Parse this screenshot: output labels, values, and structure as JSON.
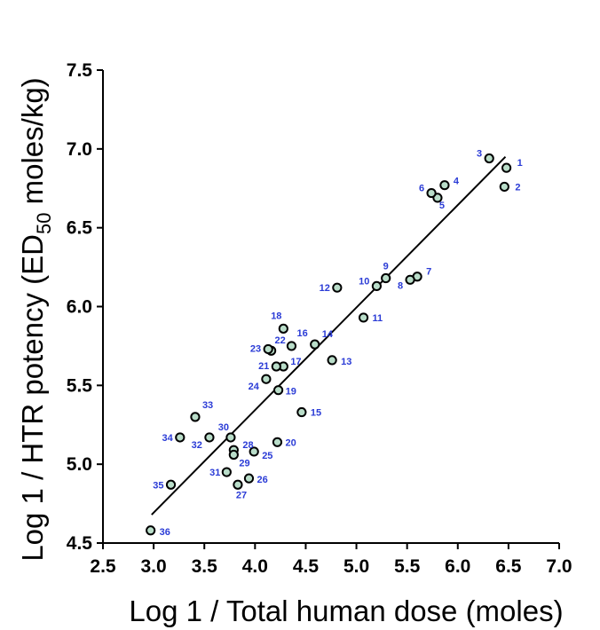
{
  "chart_data": {
    "type": "scatter",
    "xlabel": "Log  1 / Total human dose (moles)",
    "ylabel_prefix": "Log  1 / HTR potency (ED",
    "ylabel_sub": "50",
    "ylabel_suffix": " moles/kg)",
    "xlim": [
      2.5,
      7.0
    ],
    "ylim": [
      4.5,
      7.5
    ],
    "x_ticks": [
      "2.5",
      "3.0",
      "3.5",
      "4.0",
      "4.5",
      "5.0",
      "5.5",
      "6.0",
      "6.5",
      "7.0"
    ],
    "y_ticks": [
      "4.5",
      "5.0",
      "5.5",
      "6.0",
      "6.5",
      "7.0",
      "7.5"
    ],
    "grid": false,
    "point_color": "#b9ddc9",
    "label_color": "#2a3bd6",
    "fit_line": {
      "x": [
        2.98,
        6.47
      ],
      "y": [
        4.68,
        6.95
      ]
    },
    "points": [
      {
        "id": "1",
        "x": 6.48,
        "y": 6.88
      },
      {
        "id": "2",
        "x": 6.46,
        "y": 6.76
      },
      {
        "id": "3",
        "x": 6.31,
        "y": 6.94
      },
      {
        "id": "4",
        "x": 5.87,
        "y": 6.77
      },
      {
        "id": "5",
        "x": 5.8,
        "y": 6.69
      },
      {
        "id": "6",
        "x": 5.74,
        "y": 6.72
      },
      {
        "id": "7",
        "x": 5.6,
        "y": 6.19
      },
      {
        "id": "8",
        "x": 5.53,
        "y": 6.17
      },
      {
        "id": "9",
        "x": 5.29,
        "y": 6.18
      },
      {
        "id": "10",
        "x": 5.2,
        "y": 6.13
      },
      {
        "id": "11",
        "x": 5.07,
        "y": 5.93
      },
      {
        "id": "12",
        "x": 4.81,
        "y": 6.12
      },
      {
        "id": "13",
        "x": 4.76,
        "y": 5.66
      },
      {
        "id": "14",
        "x": 4.59,
        "y": 5.76
      },
      {
        "id": "15",
        "x": 4.46,
        "y": 5.33
      },
      {
        "id": "16",
        "x": 4.36,
        "y": 5.75
      },
      {
        "id": "17",
        "x": 4.28,
        "y": 5.62
      },
      {
        "id": "18",
        "x": 4.28,
        "y": 5.86
      },
      {
        "id": "19",
        "x": 4.23,
        "y": 5.47
      },
      {
        "id": "20",
        "x": 4.22,
        "y": 5.14
      },
      {
        "id": "21",
        "x": 4.21,
        "y": 5.62
      },
      {
        "id": "22",
        "x": 4.16,
        "y": 5.72
      },
      {
        "id": "23",
        "x": 4.13,
        "y": 5.73
      },
      {
        "id": "24",
        "x": 4.11,
        "y": 5.54
      },
      {
        "id": "25",
        "x": 3.99,
        "y": 5.08
      },
      {
        "id": "26",
        "x": 3.94,
        "y": 4.91
      },
      {
        "id": "27",
        "x": 3.83,
        "y": 4.87
      },
      {
        "id": "28",
        "x": 3.79,
        "y": 5.09
      },
      {
        "id": "29",
        "x": 3.79,
        "y": 5.06
      },
      {
        "id": "30",
        "x": 3.76,
        "y": 5.17
      },
      {
        "id": "31",
        "x": 3.72,
        "y": 4.95
      },
      {
        "id": "32",
        "x": 3.55,
        "y": 5.17
      },
      {
        "id": "33",
        "x": 3.41,
        "y": 5.3
      },
      {
        "id": "34",
        "x": 3.26,
        "y": 5.17
      },
      {
        "id": "35",
        "x": 3.17,
        "y": 4.87
      },
      {
        "id": "36",
        "x": 2.97,
        "y": 4.58
      }
    ]
  }
}
